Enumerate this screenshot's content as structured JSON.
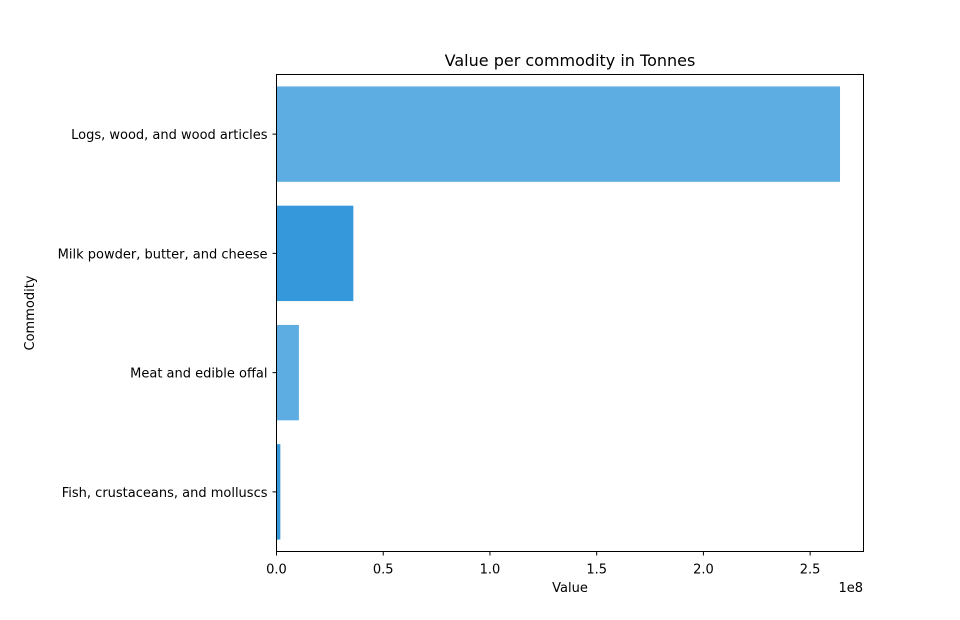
{
  "chart_data": {
    "type": "bar",
    "orientation": "horizontal",
    "title": "Value per commodity in Tonnes",
    "xlabel": "Value",
    "ylabel": "Commodity",
    "x_scale_label": "1e8",
    "xlim": [
      0,
      2.75
    ],
    "x_ticks": [
      0.0,
      0.5,
      1.0,
      1.5,
      2.0,
      2.5
    ],
    "x_tick_labels": [
      "0.0",
      "0.5",
      "1.0",
      "1.5",
      "2.0",
      "2.5"
    ],
    "grid": false,
    "categories": [
      "Logs, wood, and wood articles",
      "Milk powder, butter, and cheese",
      "Meat and edible offal",
      "Fish, crustaceans, and molluscs"
    ],
    "values": [
      2.64,
      0.36,
      0.105,
      0.018
    ],
    "colors": [
      "#5dade2",
      "#3498db",
      "#5dade2",
      "#3498db"
    ]
  }
}
